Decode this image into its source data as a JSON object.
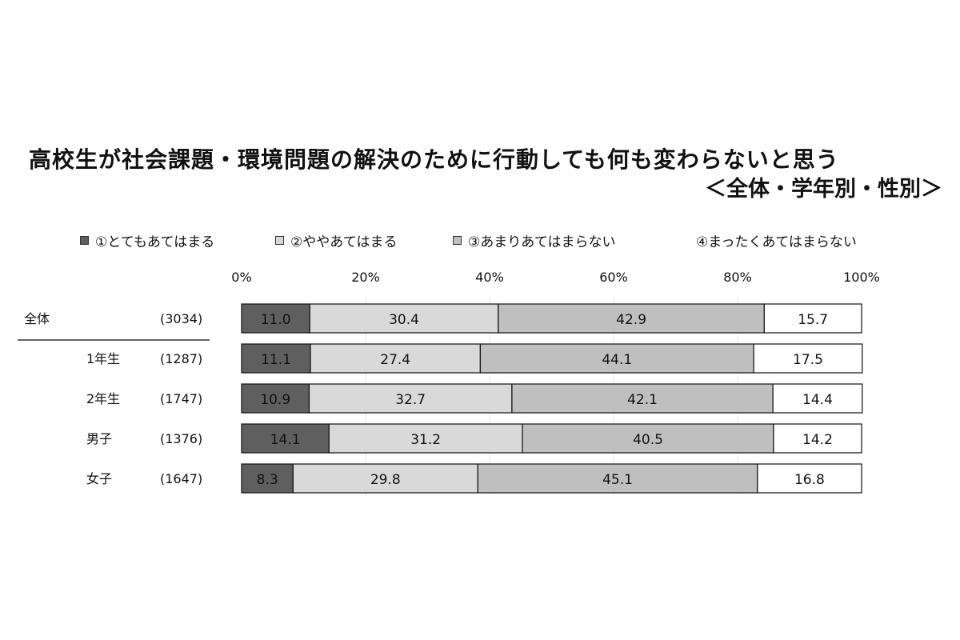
{
  "title": "高校生が社会課題・環境問題の解決のために行動しても何も変わらないと思う",
  "subtitle": "＜全体・学年別・性別＞",
  "colors": {
    "series": [
      "#5f5f5f",
      "#d9d9d9",
      "#bfbfbf",
      "#ffffff"
    ],
    "bar_border": "#111111"
  },
  "chart_data": {
    "type": "bar",
    "orientation": "horizontal",
    "stacked": "percent",
    "title": "高校生が社会課題・環境問題の解決のために行動しても何も変わらないと思う",
    "subtitle": "＜全体・学年別・性別＞",
    "xlim": [
      0,
      100
    ],
    "x_ticks": [
      "0%",
      "20%",
      "40%",
      "60%",
      "80%",
      "100%"
    ],
    "legend_position": "top",
    "categories": [
      "全体",
      "1年生",
      "2年生",
      "男子",
      "女子"
    ],
    "counts": [
      "(3034)",
      "(1287)",
      "(1747)",
      "(1376)",
      "(1647)"
    ],
    "series": [
      {
        "name": "①とてもあてはまる",
        "values": [
          11.0,
          11.1,
          10.9,
          14.1,
          8.3
        ]
      },
      {
        "name": "②ややあてはまる",
        "values": [
          30.4,
          27.4,
          32.7,
          31.2,
          29.8
        ]
      },
      {
        "name": "③あまりあてはまらない",
        "values": [
          42.9,
          44.1,
          42.1,
          40.5,
          45.1
        ]
      },
      {
        "name": "④まったくあてはまらない",
        "values": [
          15.7,
          17.5,
          14.4,
          14.2,
          16.8
        ]
      }
    ]
  }
}
